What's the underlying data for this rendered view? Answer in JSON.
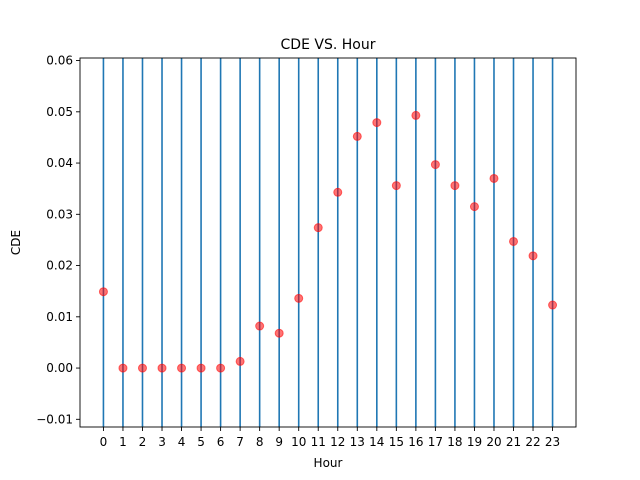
{
  "chart_data": {
    "type": "scatter",
    "title": "CDE VS. Hour",
    "xlabel": "Hour",
    "ylabel": "CDE",
    "x": [
      0,
      1,
      2,
      3,
      4,
      5,
      6,
      7,
      8,
      9,
      10,
      11,
      12,
      13,
      14,
      15,
      16,
      17,
      18,
      19,
      20,
      21,
      22,
      23
    ],
    "y": [
      0.0149,
      0.0,
      0.0,
      0.0,
      0.0,
      0.0,
      0.0,
      0.0013,
      0.0082,
      0.0068,
      0.0136,
      0.0274,
      0.0343,
      0.0452,
      0.0479,
      0.0356,
      0.0493,
      0.0397,
      0.0356,
      0.0315,
      0.037,
      0.0247,
      0.0219,
      0.0123
    ],
    "x_ticks": [
      "0",
      "1",
      "2",
      "3",
      "4",
      "5",
      "6",
      "7",
      "8",
      "9",
      "10",
      "11",
      "12",
      "13",
      "14",
      "15",
      "16",
      "17",
      "18",
      "19",
      "20",
      "21",
      "22",
      "23"
    ],
    "y_ticks": [
      -0.01,
      0.0,
      0.01,
      0.02,
      0.03,
      0.04,
      0.05,
      0.06
    ],
    "y_tick_labels": [
      "−0.01",
      "0.00",
      "0.01",
      "0.02",
      "0.03",
      "0.04",
      "0.05",
      "0.06"
    ],
    "xlim": [
      -1.2,
      24.2
    ],
    "ylim": [
      -0.0115,
      0.0605
    ],
    "vertical_lines_at_each_x": true,
    "grid": false,
    "marker_color": "#ff0000",
    "line_color": "#1f77b4"
  }
}
